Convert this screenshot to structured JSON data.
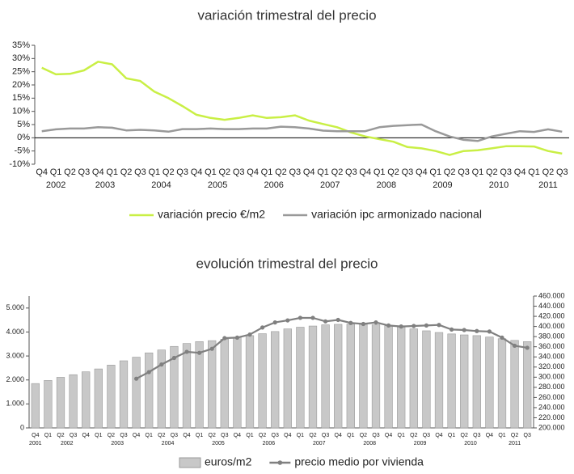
{
  "chart_data": [
    {
      "type": "line",
      "title": "variación trimestral del precio",
      "categories": [
        "Q4",
        "Q1",
        "Q2",
        "Q3",
        "Q4",
        "Q1",
        "Q2",
        "Q3",
        "Q1",
        "Q2",
        "Q3",
        "Q4",
        "Q1",
        "Q2",
        "Q3",
        "Q4",
        "Q1",
        "Q2",
        "Q3",
        "Q4",
        "Q1",
        "Q2",
        "Q3",
        "Q4",
        "Q1",
        "Q2",
        "Q3",
        "Q4",
        "Q1",
        "Q2",
        "Q3",
        "Q1",
        "Q2",
        "Q3",
        "Q4",
        "Q1",
        "Q2",
        "Q3"
      ],
      "x_groups": [
        {
          "label": "2002",
          "size": 3
        },
        {
          "label": "2003",
          "size": 4
        },
        {
          "label": "2004",
          "size": 4
        },
        {
          "label": "2005",
          "size": 4
        },
        {
          "label": "2006",
          "size": 4
        },
        {
          "label": "2007",
          "size": 4
        },
        {
          "label": "2008",
          "size": 4
        },
        {
          "label": "2009",
          "size": 4
        },
        {
          "label": "2010",
          "size": 4
        },
        {
          "label": "2011",
          "size": 3
        }
      ],
      "series": [
        {
          "name": "variación precio €/m2",
          "color": "#c9ef45",
          "values": [
            26.5,
            24,
            24.2,
            25.5,
            28.8,
            27.8,
            22.5,
            21.5,
            17.5,
            15,
            12,
            8.7,
            7.5,
            6.8,
            7.5,
            8.5,
            7.5,
            7.8,
            8.5,
            6.5,
            5.2,
            4,
            2,
            0.5,
            -0.5,
            -1.5,
            -3.5,
            -4,
            -5,
            -6.5,
            -5,
            -4.7,
            -4,
            -3.2,
            -3.2,
            -3.3,
            -5,
            -6
          ]
        },
        {
          "name": "variación ipc armonizado nacional",
          "color": "#999999",
          "values": [
            2.5,
            3.2,
            3.5,
            3.5,
            4,
            3.8,
            2.8,
            3,
            2.8,
            2.3,
            3.3,
            3.3,
            3.5,
            3.3,
            3.3,
            3.5,
            3.5,
            4.2,
            4,
            3.5,
            2.7,
            2.5,
            2.5,
            2.5,
            4,
            4.5,
            4.8,
            5,
            2.5,
            0.5,
            -0.8,
            -1.2,
            0.5,
            1.5,
            2.5,
            2.2,
            3.2,
            2.3
          ]
        }
      ],
      "ylim": [
        -10,
        35
      ],
      "yticks": [
        {
          "value": -10,
          "label": "-10%"
        },
        {
          "value": -5,
          "label": "-5%"
        },
        {
          "value": 0,
          "label": "0%"
        },
        {
          "value": 5,
          "label": "5%"
        },
        {
          "value": 10,
          "label": "10%"
        },
        {
          "value": 15,
          "label": "15%"
        },
        {
          "value": 20,
          "label": "20%"
        },
        {
          "value": 25,
          "label": "25%"
        },
        {
          "value": 30,
          "label": "30%"
        },
        {
          "value": 35,
          "label": "35%"
        }
      ],
      "grid": false,
      "legend": "bottom"
    },
    {
      "type": "bar",
      "title": "evolución trimestral del precio",
      "categories": [
        "Q4",
        "Q1",
        "Q2",
        "Q3",
        "Q4",
        "Q1",
        "Q2",
        "Q3",
        "Q4",
        "Q1",
        "Q2",
        "Q3",
        "Q4",
        "Q1",
        "Q2",
        "Q3",
        "Q4",
        "Q1",
        "Q2",
        "Q3",
        "Q4",
        "Q1",
        "Q2",
        "Q3",
        "Q4",
        "Q1",
        "Q2",
        "Q3",
        "Q4",
        "Q1",
        "Q2",
        "Q3",
        "Q4",
        "Q1",
        "Q2",
        "Q3",
        "Q4",
        "Q1",
        "Q2",
        "Q3"
      ],
      "x_groups": [
        {
          "label": "2001",
          "size": 1
        },
        {
          "label": "2002",
          "size": 4
        },
        {
          "label": "2003",
          "size": 4
        },
        {
          "label": "2004",
          "size": 4
        },
        {
          "label": "2005",
          "size": 4
        },
        {
          "label": "2006",
          "size": 4
        },
        {
          "label": "2007",
          "size": 4
        },
        {
          "label": "2008",
          "size": 4
        },
        {
          "label": "2009",
          "size": 4
        },
        {
          "label": "2010",
          "size": 4
        },
        {
          "label": "2011",
          "size": 3
        }
      ],
      "series": [
        {
          "name": "euros/m2",
          "color": "#c8c8c8",
          "values": [
            1850,
            1980,
            2110,
            2220,
            2340,
            2460,
            2620,
            2800,
            2950,
            3130,
            3250,
            3400,
            3520,
            3600,
            3640,
            3700,
            3780,
            3850,
            3930,
            4020,
            4130,
            4200,
            4250,
            4300,
            4320,
            4330,
            4320,
            4300,
            4260,
            4200,
            4130,
            4050,
            3980,
            3920,
            3880,
            3850,
            3790,
            3720,
            3650,
            3600
          ]
        },
        {
          "name": "precio medio por vivienda",
          "type": "line",
          "axis": "y2",
          "color": "#808080",
          "values": [
            null,
            null,
            null,
            null,
            null,
            null,
            null,
            null,
            297000,
            310000,
            325000,
            338000,
            350000,
            348000,
            356000,
            377000,
            378000,
            384000,
            398000,
            408000,
            412000,
            417000,
            417000,
            410000,
            413000,
            407000,
            405000,
            408000,
            402000,
            400000,
            401000,
            402000,
            403000,
            394000,
            393000,
            391000,
            390000,
            378000,
            362000,
            358000
          ]
        }
      ],
      "ylim": [
        0,
        5500
      ],
      "yticks": [
        0,
        {
          "value": 1000,
          "label": "1.000"
        },
        {
          "value": 2000,
          "label": "2.000"
        },
        {
          "value": 3000,
          "label": "3.000"
        },
        {
          "value": 4000,
          "label": "4.000"
        },
        {
          "value": 5000,
          "label": "5.000"
        }
      ],
      "y2lim": [
        200000,
        460000
      ],
      "y2ticks": [
        {
          "value": 200000,
          "label": "200.000"
        },
        {
          "value": 220000,
          "label": "220.000"
        },
        {
          "value": 240000,
          "label": "240.000"
        },
        {
          "value": 260000,
          "label": "260.000"
        },
        {
          "value": 280000,
          "label": "280.000"
        },
        {
          "value": 300000,
          "label": "300.000"
        },
        {
          "value": 320000,
          "label": "320.000"
        },
        {
          "value": 340000,
          "label": "340.000"
        },
        {
          "value": 360000,
          "label": "360.000"
        },
        {
          "value": 380000,
          "label": "380.000"
        },
        {
          "value": 400000,
          "label": "400.000"
        },
        {
          "value": 420000,
          "label": "420.000"
        },
        {
          "value": 440000,
          "label": "440.000"
        },
        {
          "value": 460000,
          "label": "460.000"
        }
      ],
      "grid": false,
      "legend": "bottom"
    }
  ]
}
